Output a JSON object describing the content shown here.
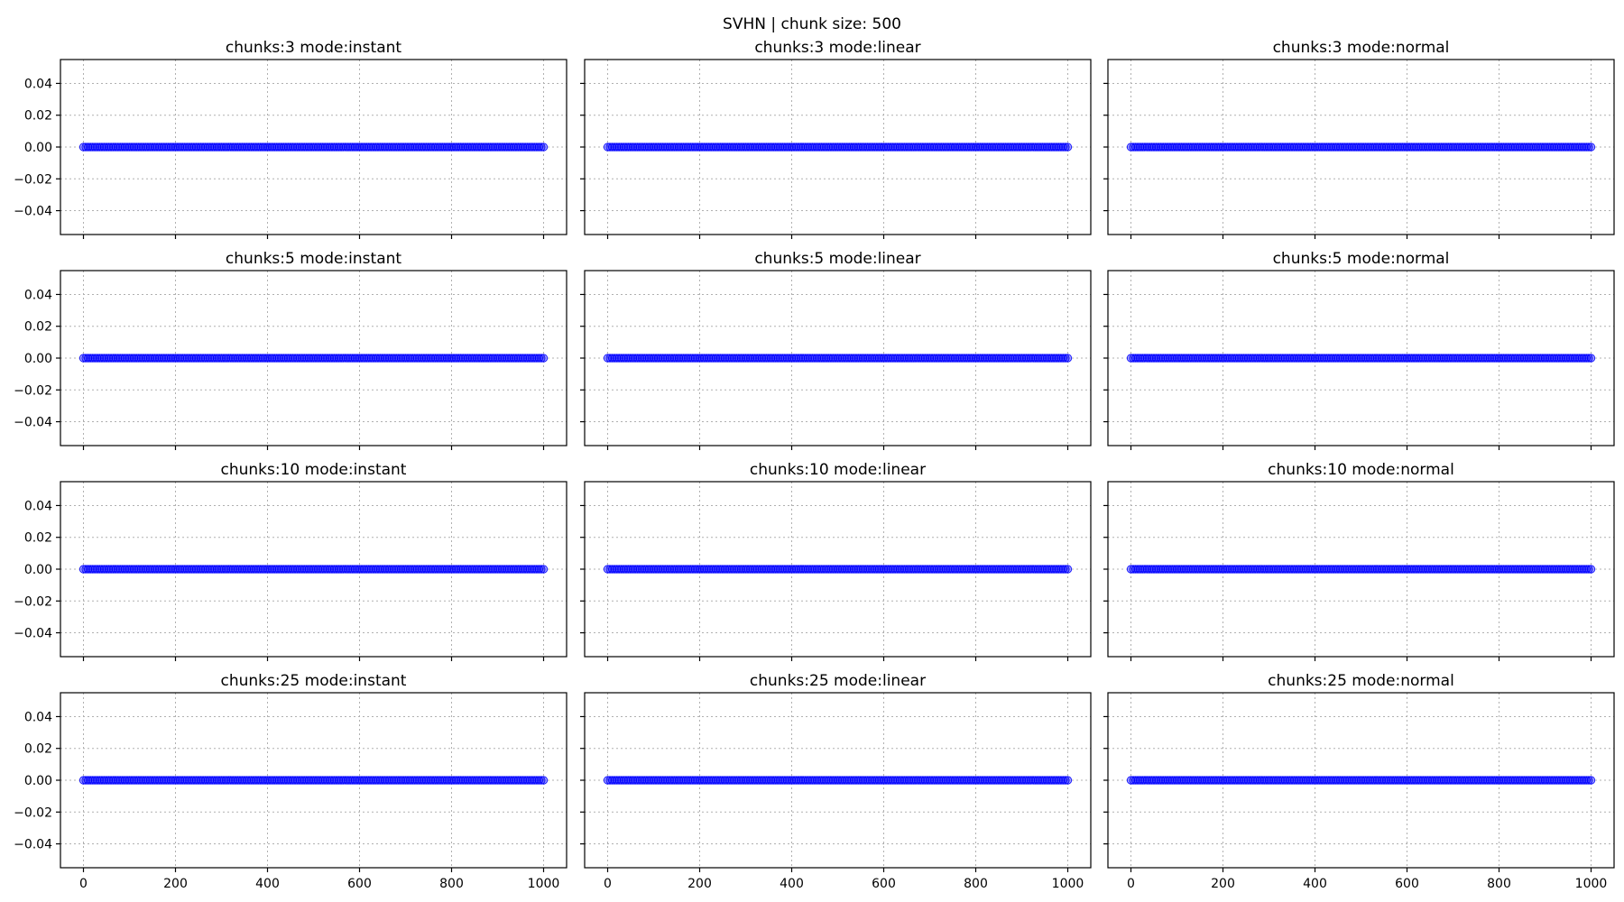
{
  "chart_data": {
    "type": "scatter",
    "title": "SVHN | chunk size: 500",
    "marker_color": "#0000ff",
    "xlim": [
      -50,
      1050
    ],
    "ylim": [
      -0.055,
      0.055
    ],
    "xticks": [
      0,
      200,
      400,
      600,
      800,
      1000
    ],
    "xtick_labels": [
      "0",
      "200",
      "400",
      "600",
      "800",
      "1000"
    ],
    "yticks": [
      0.04,
      0.02,
      0.0,
      -0.02,
      -0.04
    ],
    "ytick_labels": [
      "0.04",
      "0.02",
      "0.00",
      "−0.02",
      "−0.04"
    ],
    "grid": true,
    "shared_x": true,
    "shared_y": true,
    "series_all_subplots": {
      "x_range": [
        0,
        1000
      ],
      "y_value": 0.0
    },
    "subplots": [
      {
        "title": "chunks:3 mode:instant",
        "row": 0,
        "col": 0
      },
      {
        "title": "chunks:3 mode:linear",
        "row": 0,
        "col": 1
      },
      {
        "title": "chunks:3 mode:normal",
        "row": 0,
        "col": 2
      },
      {
        "title": "chunks:5 mode:instant",
        "row": 1,
        "col": 0
      },
      {
        "title": "chunks:5 mode:linear",
        "row": 1,
        "col": 1
      },
      {
        "title": "chunks:5 mode:normal",
        "row": 1,
        "col": 2
      },
      {
        "title": "chunks:10 mode:instant",
        "row": 2,
        "col": 0
      },
      {
        "title": "chunks:10 mode:linear",
        "row": 2,
        "col": 1
      },
      {
        "title": "chunks:10 mode:normal",
        "row": 2,
        "col": 2
      },
      {
        "title": "chunks:25 mode:instant",
        "row": 3,
        "col": 0
      },
      {
        "title": "chunks:25 mode:linear",
        "row": 3,
        "col": 1
      },
      {
        "title": "chunks:25 mode:normal",
        "row": 3,
        "col": 2
      }
    ]
  }
}
